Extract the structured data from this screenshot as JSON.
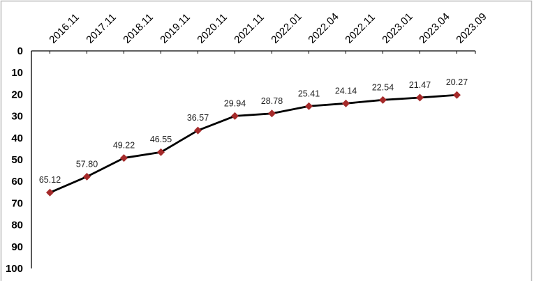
{
  "chart_data": {
    "type": "line",
    "title": "",
    "xlabel": "",
    "ylabel": "",
    "categories": [
      "2016.11",
      "2017.11",
      "2018.11",
      "2019.11",
      "2020.11",
      "2021.11",
      "2022.01",
      "2022.04",
      "2022.11",
      "2023.01",
      "2023.04",
      "2023.09"
    ],
    "values": [
      65.12,
      57.8,
      49.22,
      46.55,
      36.57,
      29.94,
      28.78,
      25.41,
      24.14,
      22.54,
      21.47,
      20.27
    ],
    "data_labels": [
      "65.12",
      "57.80",
      "49.22",
      "46.55",
      "36.57",
      "29.94",
      "28.78",
      "25.41",
      "24.14",
      "22.54",
      "21.47",
      "20.27"
    ],
    "ylim": [
      0,
      100
    ],
    "y_axis_reversed": true,
    "y_ticks": [
      0,
      10,
      20,
      30,
      40,
      50,
      60,
      70,
      80,
      90,
      100
    ],
    "x_axis_position": "top",
    "grid": false,
    "legend": "none",
    "line_color": "#000000",
    "marker": "diamond",
    "marker_color": "#a52a2a"
  }
}
